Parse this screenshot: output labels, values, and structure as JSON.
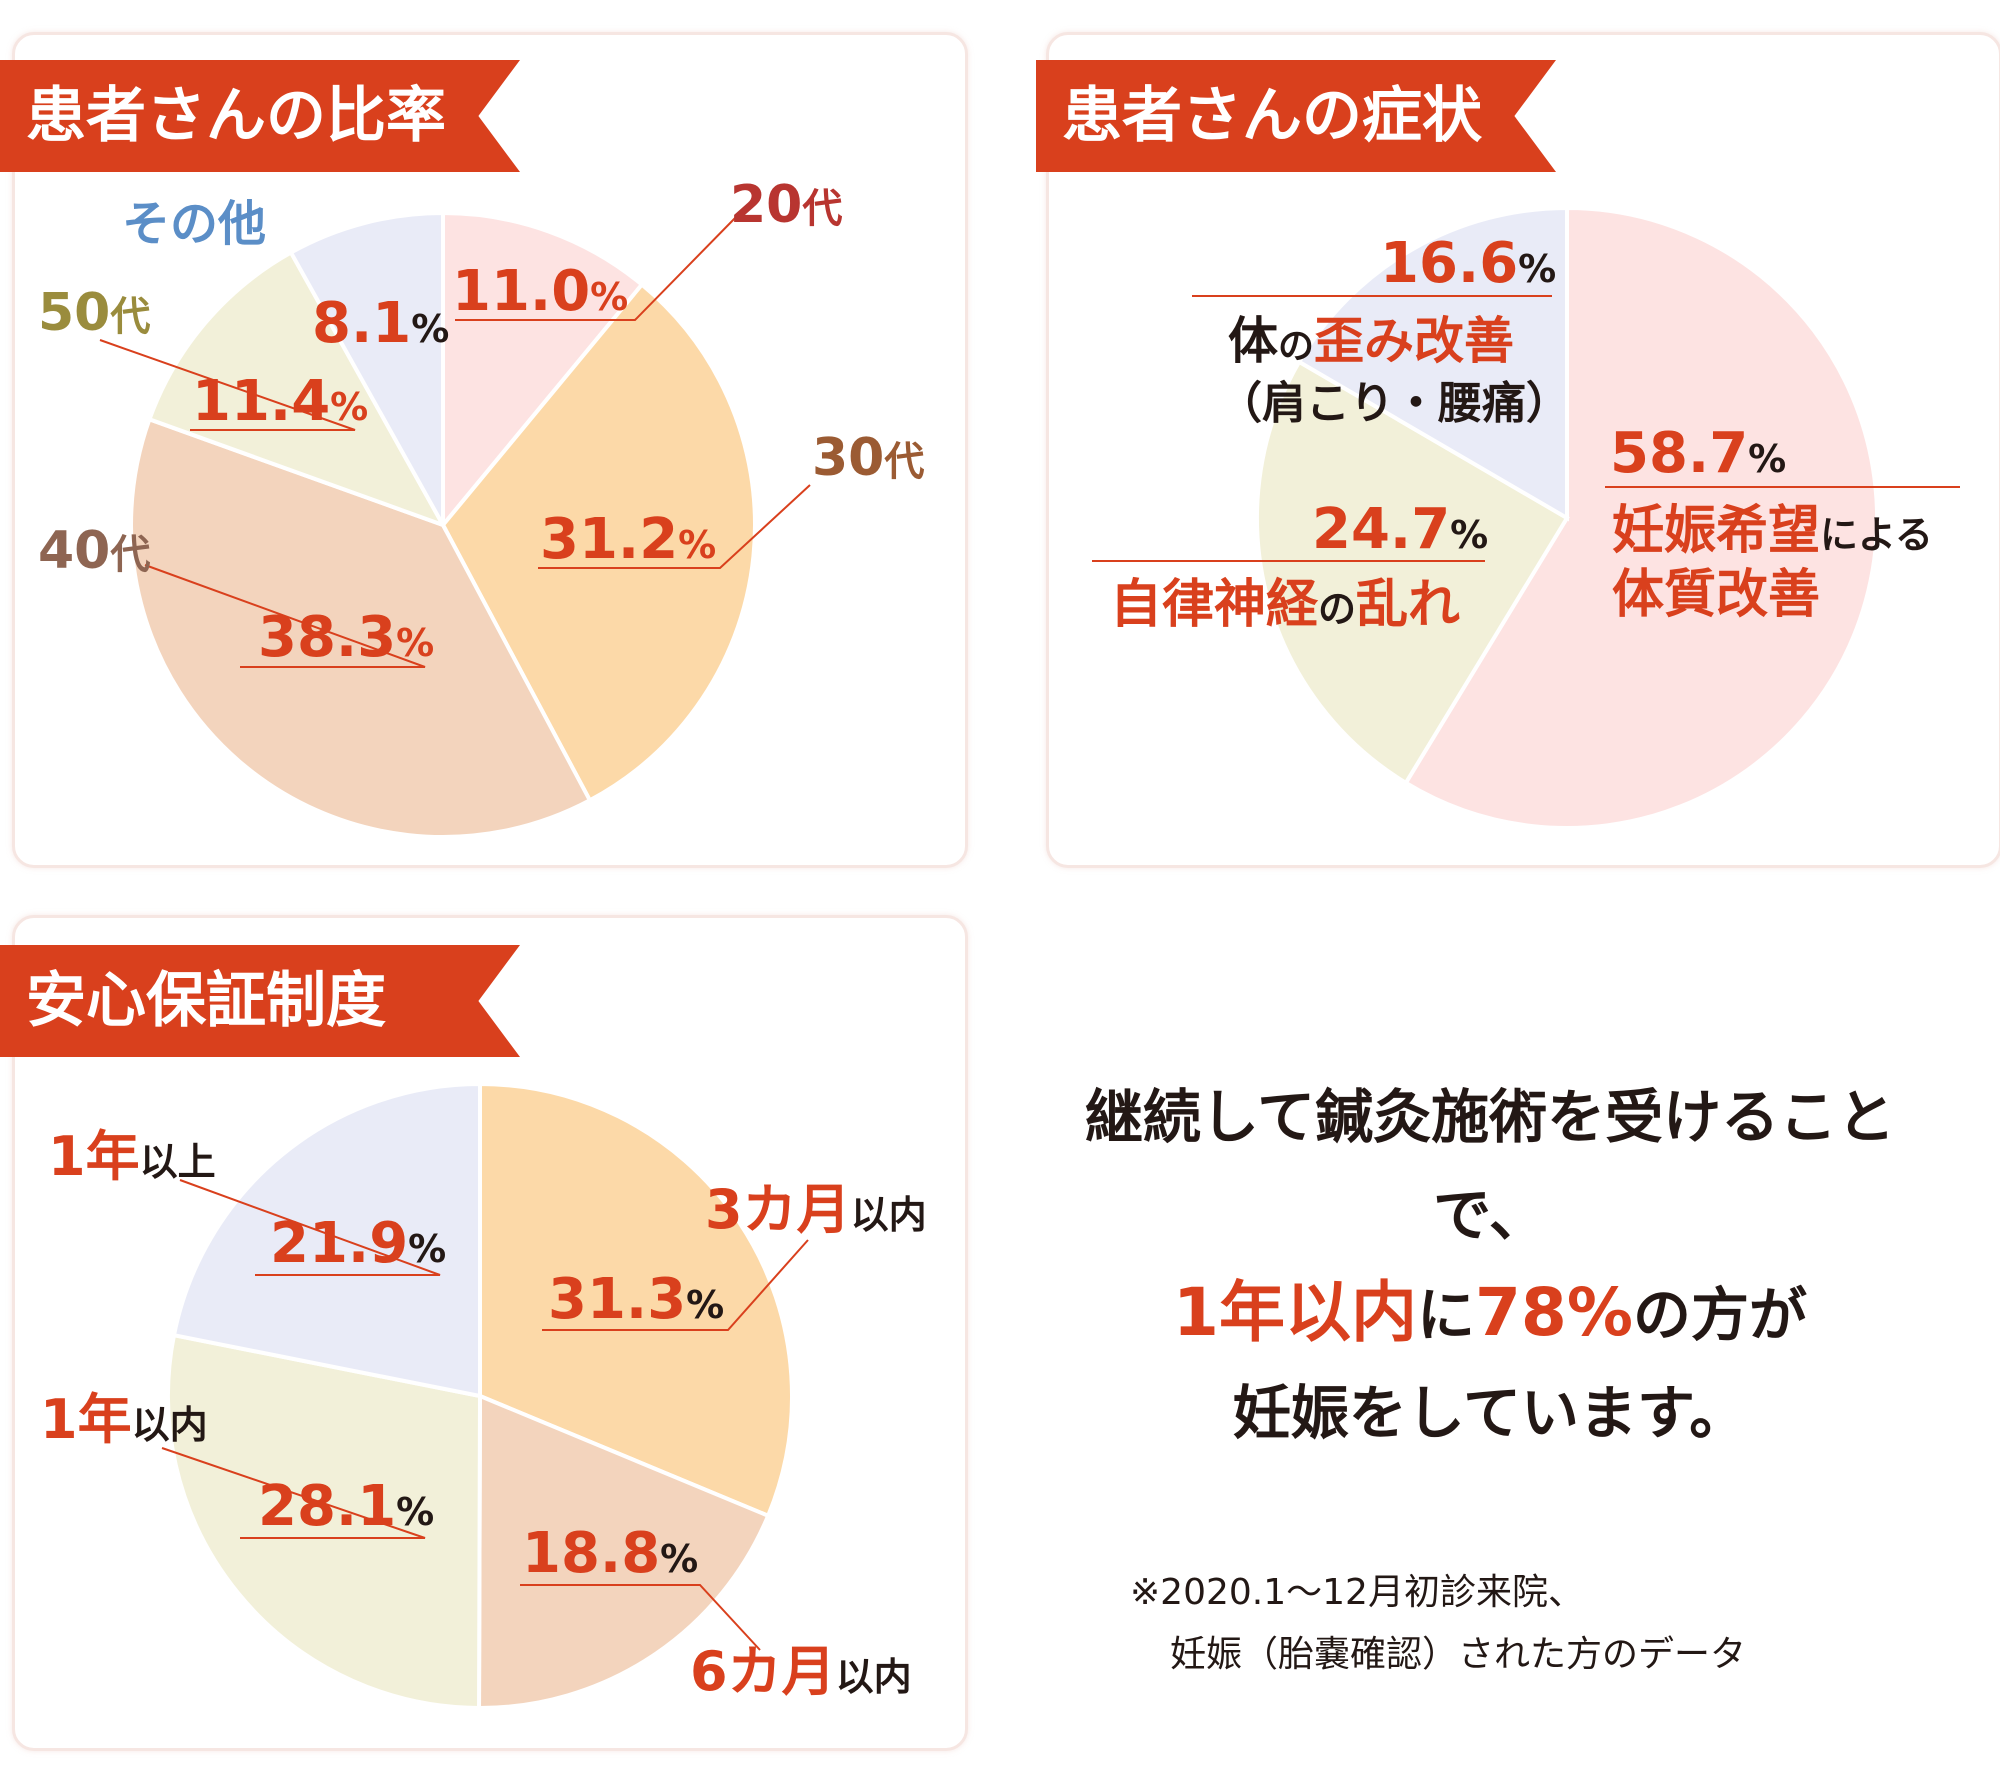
{
  "colors": {
    "accent": "#d9401d",
    "pink": "#fde3e2",
    "orange": "#fcd9a8",
    "peach": "#f3d4bd",
    "cream": "#f2f0d9",
    "lavender": "#e9ebf7",
    "divider": "#ffffff"
  },
  "chart_data": [
    {
      "type": "pie",
      "title": "患者さんの比率",
      "start": "top",
      "direction": "clockwise",
      "slices": [
        {
          "label": "20代",
          "value": 11.0,
          "value_text": "11.0",
          "color": "#fde3e2",
          "label_color": "#b83530"
        },
        {
          "label": "30代",
          "value": 31.2,
          "value_text": "31.2",
          "color": "#fcd9a8",
          "label_color": "#9b5b33"
        },
        {
          "label": "40代",
          "value": 38.3,
          "value_text": "38.3",
          "color": "#f3d4bd",
          "label_color": "#8e6552"
        },
        {
          "label": "50代",
          "value": 11.4,
          "value_text": "11.4",
          "color": "#f2f0d9",
          "label_color": "#9a8c3d"
        },
        {
          "label": "その他",
          "value": 8.1,
          "value_text": "8.1",
          "color": "#e9ebf7",
          "label_color": "#5b8ec7"
        }
      ]
    },
    {
      "type": "pie",
      "title": "患者さんの症状",
      "start": "top",
      "direction": "clockwise",
      "slices": [
        {
          "label": "妊娠希望による体質改善",
          "value": 58.7,
          "value_text": "58.7",
          "color": "#fde3e2"
        },
        {
          "label": "自律神経の乱れ",
          "value": 24.7,
          "value_text": "24.7",
          "color": "#f2f0d9"
        },
        {
          "label": "体の歪み改善（肩こり・腰痛）",
          "value": 16.6,
          "value_text": "16.6",
          "color": "#e9ebf7"
        }
      ]
    },
    {
      "type": "pie",
      "title": "安心保証制度",
      "start": "top",
      "direction": "clockwise",
      "slices": [
        {
          "label": "3カ月以内",
          "value": 31.3,
          "value_text": "31.3",
          "color": "#fcd9a8"
        },
        {
          "label": "6カ月以内",
          "value": 18.8,
          "value_text": "18.8",
          "color": "#f3d4bd"
        },
        {
          "label": "1年以内",
          "value": 28.1,
          "value_text": "28.1",
          "color": "#f2f0d9"
        },
        {
          "label": "1年以上",
          "value": 21.9,
          "value_text": "21.9",
          "color": "#e9ebf7"
        }
      ]
    }
  ],
  "labels": {
    "percent_sign": "%",
    "no": "の",
    "age": {
      "s20": "20",
      "s30": "30",
      "s40": "40",
      "s50": "50",
      "dai": "代",
      "other": "その他"
    },
    "symptom": {
      "a_main": "妊娠希望",
      "a_small": "による",
      "a_line2": "体質改善",
      "b_main1": "自律神経",
      "b_main2": "乱れ",
      "c_k1": "体",
      "c_red": "歪み改善",
      "c_line2": "（肩こり・腰痛）"
    },
    "guarantee": {
      "m3_big": "3カ月",
      "m6_big": "6カ月",
      "y1": "1年",
      "within": "以内",
      "above": "以上"
    }
  },
  "note": {
    "line1": "継続して鍼灸施術を受けることで、",
    "line2_red1": "1年以内",
    "line2_mid": "に",
    "line2_red2": "78%",
    "line2_end": "の方が",
    "line3": "妊娠をしています。"
  },
  "footnote": {
    "line1": "※2020.1～12月初診来院、",
    "line2": "妊娠（胎嚢確認）された方のデータ"
  }
}
